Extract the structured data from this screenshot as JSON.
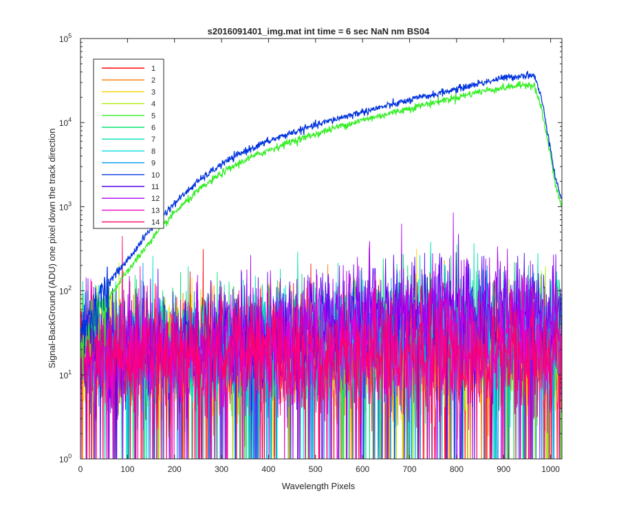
{
  "chart_data": {
    "type": "line",
    "title": "s2016091401_img.mat int time = 6 sec  NaN nm BS04",
    "xlabel": "Wavelength Pixels",
    "ylabel": "Signal-BackGround (ADU) one pixel down the track direction",
    "xlim": [
      0,
      1024
    ],
    "ylim": [
      1,
      100000
    ],
    "yscale": "log",
    "grid": false,
    "legend_position": "top-left",
    "x_ticks": [
      "0",
      "100",
      "200",
      "300",
      "400",
      "500",
      "600",
      "700",
      "800",
      "900",
      "1000"
    ],
    "y_ticks": [
      {
        "base": "10",
        "exp": "0"
      },
      {
        "base": "10",
        "exp": "1"
      },
      {
        "base": "10",
        "exp": "2"
      },
      {
        "base": "10",
        "exp": "3"
      },
      {
        "base": "10",
        "exp": "4"
      },
      {
        "base": "10",
        "exp": "5"
      }
    ],
    "x_sample": [
      0,
      25,
      50,
      100,
      150,
      200,
      250,
      300,
      350,
      400,
      450,
      500,
      550,
      600,
      650,
      700,
      750,
      800,
      850,
      900,
      950,
      965,
      980,
      1000,
      1010,
      1024
    ],
    "series": [
      {
        "name": "1",
        "color": "#ff0000",
        "kind": "noise",
        "profile": [
          20,
          20,
          18,
          18,
          18,
          18,
          18,
          18,
          18,
          18,
          18,
          18,
          18,
          18,
          18,
          18,
          18,
          18,
          18,
          18,
          18,
          18,
          18,
          18,
          18,
          18
        ]
      },
      {
        "name": "2",
        "color": "#ff7700",
        "kind": "noise",
        "profile": [
          20,
          20,
          18,
          18,
          18,
          18,
          18,
          18,
          18,
          18,
          18,
          18,
          18,
          18,
          18,
          18,
          18,
          18,
          18,
          18,
          18,
          18,
          18,
          18,
          18,
          18
        ]
      },
      {
        "name": "3",
        "color": "#ffd200",
        "kind": "noise",
        "profile": [
          20,
          20,
          18,
          18,
          18,
          18,
          18,
          18,
          18,
          18,
          18,
          18,
          18,
          18,
          18,
          18,
          18,
          18,
          18,
          18,
          18,
          18,
          18,
          18,
          18,
          18
        ]
      },
      {
        "name": "4",
        "color": "#aaee00",
        "kind": "noise",
        "profile": [
          20,
          20,
          18,
          18,
          18,
          18,
          18,
          18,
          18,
          18,
          18,
          18,
          18,
          18,
          18,
          18,
          18,
          18,
          18,
          18,
          18,
          18,
          18,
          18,
          18,
          18
        ]
      },
      {
        "name": "5",
        "color": "#33ee22",
        "kind": "signal",
        "profile": [
          20,
          40,
          70,
          170,
          400,
          850,
          1550,
          2500,
          3600,
          4700,
          6000,
          7300,
          9000,
          10700,
          12600,
          14800,
          17300,
          20000,
          23500,
          26000,
          28500,
          28000,
          15000,
          4000,
          1800,
          1000
        ]
      },
      {
        "name": "6",
        "color": "#00e070",
        "kind": "noise",
        "profile": [
          22,
          22,
          20,
          20,
          20,
          20,
          20,
          21,
          22,
          24,
          27,
          30,
          33,
          36,
          40,
          43,
          46,
          48,
          47,
          45,
          42,
          40,
          38,
          36,
          35,
          34
        ]
      },
      {
        "name": "7",
        "color": "#00e0b0",
        "kind": "noise",
        "profile": [
          22,
          22,
          20,
          20,
          20,
          20,
          20,
          21,
          22,
          24,
          27,
          30,
          33,
          36,
          40,
          43,
          46,
          48,
          47,
          45,
          42,
          40,
          38,
          36,
          35,
          34
        ]
      },
      {
        "name": "8",
        "color": "#00dddd",
        "kind": "noise",
        "profile": [
          20,
          20,
          18,
          18,
          18,
          18,
          18,
          18,
          18,
          19,
          20,
          21,
          22,
          23,
          24,
          25,
          26,
          26,
          26,
          25,
          24,
          23,
          22,
          21,
          20,
          20
        ]
      },
      {
        "name": "9",
        "color": "#0099ee",
        "kind": "noise",
        "profile": [
          20,
          20,
          18,
          18,
          18,
          18,
          18,
          18,
          18,
          19,
          20,
          21,
          22,
          23,
          24,
          25,
          26,
          26,
          26,
          25,
          24,
          23,
          22,
          21,
          20,
          20
        ]
      },
      {
        "name": "10",
        "color": "#0033dd",
        "kind": "signal",
        "profile": [
          30,
          60,
          110,
          230,
          550,
          1100,
          2000,
          3200,
          4600,
          6000,
          7600,
          9300,
          11300,
          13400,
          15700,
          18500,
          21500,
          25000,
          29500,
          34000,
          37000,
          36500,
          20000,
          5000,
          2200,
          1200
        ]
      },
      {
        "name": "11",
        "color": "#5500ee",
        "kind": "noise",
        "profile": [
          22,
          22,
          20,
          21,
          22,
          23,
          24,
          26,
          28,
          31,
          34,
          38,
          42,
          46,
          50,
          54,
          57,
          58,
          57,
          55,
          52,
          50,
          48,
          46,
          45,
          44
        ]
      },
      {
        "name": "12",
        "color": "#aa00ee",
        "kind": "noise",
        "profile": [
          22,
          22,
          20,
          21,
          22,
          23,
          24,
          26,
          28,
          31,
          34,
          38,
          42,
          46,
          50,
          54,
          57,
          58,
          57,
          55,
          52,
          50,
          48,
          46,
          45,
          44
        ]
      },
      {
        "name": "13",
        "color": "#ee00cc",
        "kind": "noise",
        "profile": [
          20,
          20,
          18,
          18,
          18,
          18,
          18,
          18,
          18,
          18,
          18,
          18,
          18,
          18,
          18,
          18,
          18,
          18,
          18,
          18,
          18,
          18,
          18,
          18,
          18,
          18
        ]
      },
      {
        "name": "14",
        "color": "#ff0066",
        "kind": "noise",
        "profile": [
          20,
          20,
          18,
          18,
          18,
          18,
          18,
          18,
          18,
          18,
          18,
          18,
          18,
          18,
          18,
          18,
          18,
          18,
          18,
          18,
          18,
          18,
          18,
          18,
          18,
          18
        ]
      }
    ]
  }
}
